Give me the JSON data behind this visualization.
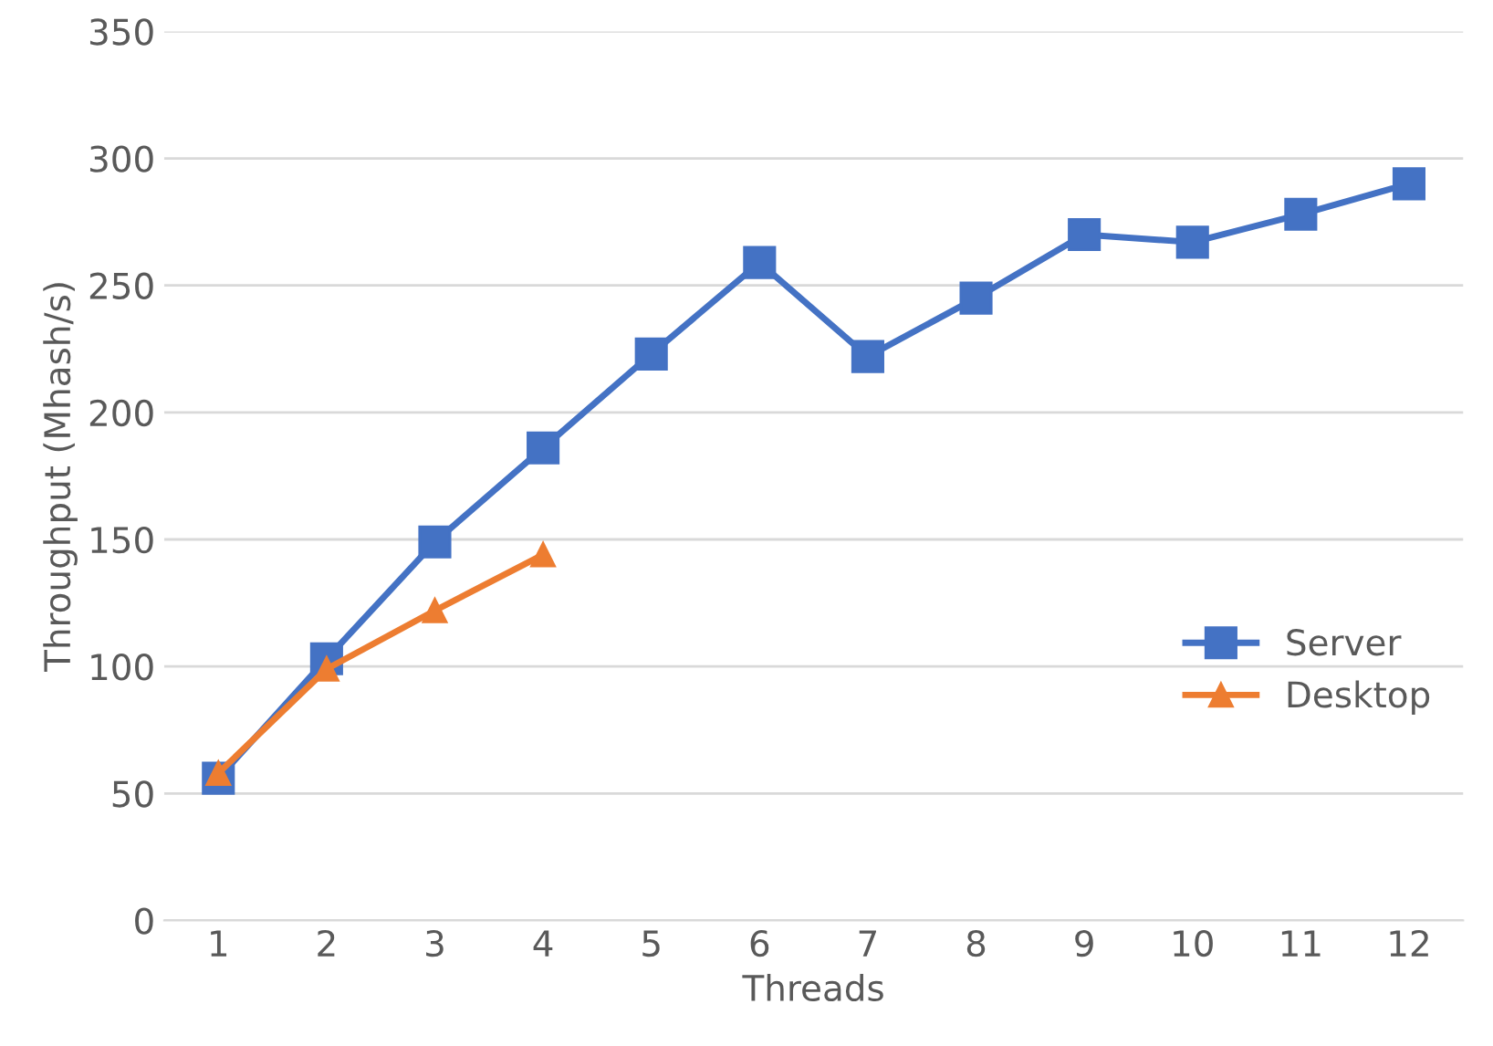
{
  "chart_data": {
    "type": "line",
    "xlabel": "Threads",
    "ylabel": "Throughput (Mhash/s)",
    "categories": [
      "1",
      "2",
      "3",
      "4",
      "5",
      "6",
      "7",
      "8",
      "9",
      "10",
      "11",
      "12"
    ],
    "series": [
      {
        "name": "Server",
        "color": "#4472c4",
        "marker": "square",
        "values": [
          56,
          103,
          149,
          186,
          223,
          259,
          222,
          245,
          270,
          267,
          278,
          290
        ]
      },
      {
        "name": "Desktop",
        "color": "#ed7d31",
        "marker": "triangle",
        "values": [
          58,
          99,
          122,
          144,
          null,
          null,
          null,
          null,
          null,
          null,
          null,
          null
        ]
      }
    ],
    "ylim": [
      0,
      350
    ],
    "yticks": [
      0,
      50,
      100,
      150,
      200,
      250,
      300,
      350
    ],
    "grid": "y",
    "legend": "right",
    "line_style": "solid"
  }
}
